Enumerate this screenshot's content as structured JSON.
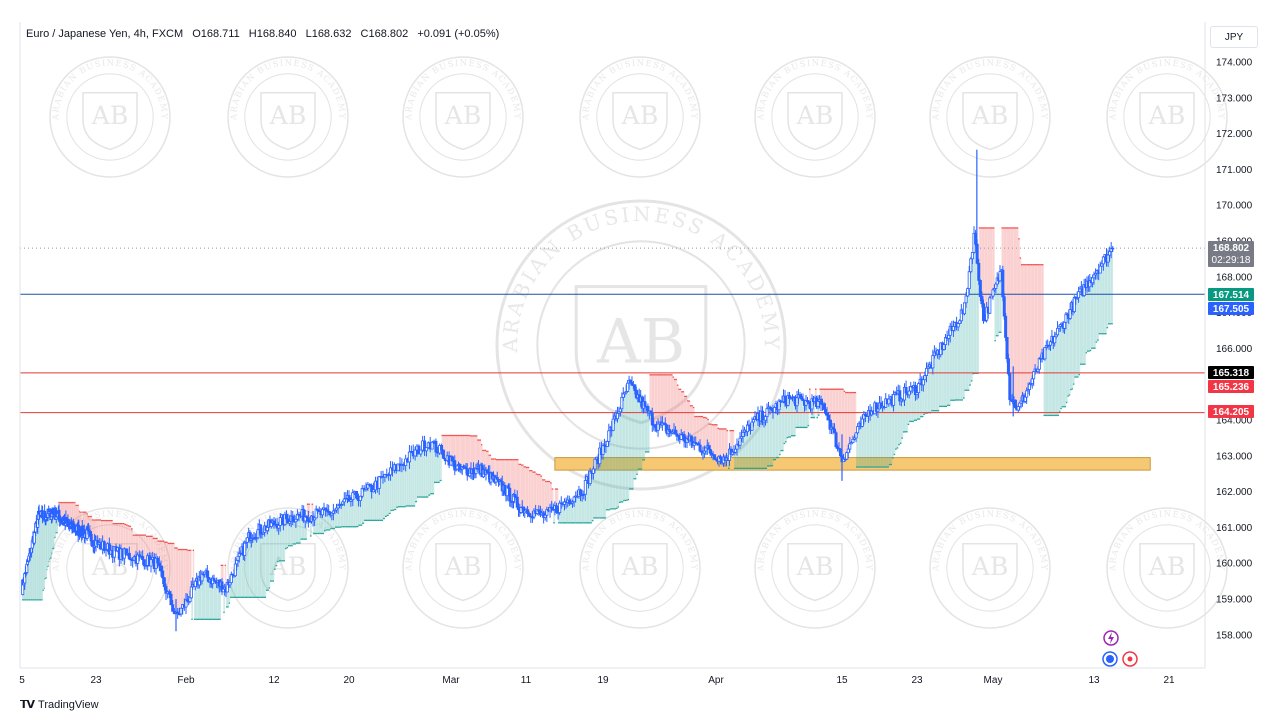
{
  "header": {
    "symbol": "Euro / Japanese Yen, 4h, FXCM",
    "open": "O168.711",
    "high": "H168.840",
    "low": "L168.632",
    "close": "C168.802",
    "change": "+0.091 (+0.05%)"
  },
  "currency": "JPY",
  "brand": "TradingView",
  "watermark": {
    "text": "ARABIAN BUSINESS ACADEMY",
    "initials": "AB"
  },
  "colors": {
    "candle": "#2962ff",
    "resistance_line": "#e53935",
    "support_line": "#1e4fa8",
    "zone_fill": "#f7c873",
    "cloud_up": "#26a69a",
    "cloud_down": "#ef5350"
  },
  "chart_data": {
    "type": "candlestick",
    "symbol": "EUR/JPY",
    "timeframe": "4h",
    "y_ticks": [
      "174.000",
      "173.000",
      "172.000",
      "171.000",
      "170.000",
      "169.000",
      "168.000",
      "167.000",
      "166.000",
      "165.000",
      "164.000",
      "163.000",
      "162.000",
      "161.000",
      "160.000",
      "159.000",
      "158.000"
    ],
    "ylim": [
      157.6,
      174.5
    ],
    "x_ticks": [
      "5",
      "23",
      "Feb",
      "12",
      "20",
      "Mar",
      "11",
      "19",
      "Apr",
      "15",
      "23",
      "May",
      "13",
      "21"
    ],
    "close_path": [
      {
        "x": "Jan 5",
        "y": 159.3
      },
      {
        "x": "Jan 9",
        "y": 161.3
      },
      {
        "x": "Jan 13",
        "y": 161.4
      },
      {
        "x": "Jan 17",
        "y": 161.0
      },
      {
        "x": "Jan 21",
        "y": 160.8
      },
      {
        "x": "Jan 25",
        "y": 160.3
      },
      {
        "x": "Jan 29",
        "y": 160.0
      },
      {
        "x": "Jan 31",
        "y": 158.5
      },
      {
        "x": "Feb 3",
        "y": 159.7
      },
      {
        "x": "Feb 6",
        "y": 159.3
      },
      {
        "x": "Feb 9",
        "y": 160.8
      },
      {
        "x": "Feb 14",
        "y": 161.3
      },
      {
        "x": "Feb 18",
        "y": 161.4
      },
      {
        "x": "Feb 22",
        "y": 162.1
      },
      {
        "x": "Feb 27",
        "y": 163.4
      },
      {
        "x": "Mar 1",
        "y": 162.6
      },
      {
        "x": "Mar 4",
        "y": 162.6
      },
      {
        "x": "Mar 7",
        "y": 162.1
      },
      {
        "x": "Mar 9",
        "y": 161.6
      },
      {
        "x": "Mar 12",
        "y": 161.3
      },
      {
        "x": "Mar 16",
        "y": 162.1
      },
      {
        "x": "Mar 19",
        "y": 163.8
      },
      {
        "x": "Mar 21",
        "y": 165.0
      },
      {
        "x": "Mar 24",
        "y": 163.9
      },
      {
        "x": "Mar 28",
        "y": 163.4
      },
      {
        "x": "Apr 1",
        "y": 162.9
      },
      {
        "x": "Apr 4",
        "y": 163.9
      },
      {
        "x": "Apr 8",
        "y": 164.6
      },
      {
        "x": "Apr 12",
        "y": 164.4
      },
      {
        "x": "Apr 14",
        "y": 162.9
      },
      {
        "x": "Apr 17",
        "y": 164.3
      },
      {
        "x": "Apr 22",
        "y": 164.9
      },
      {
        "x": "Apr 24",
        "y": 165.8
      },
      {
        "x": "Apr 27",
        "y": 167.1
      },
      {
        "x": "Apr 28",
        "y": 169.2
      },
      {
        "x": "Apr 29",
        "y": 166.8
      },
      {
        "x": "May 1",
        "y": 168.2
      },
      {
        "x": "May 2",
        "y": 164.7
      },
      {
        "x": "May 3",
        "y": 164.3
      },
      {
        "x": "May 6",
        "y": 165.8
      },
      {
        "x": "May 10",
        "y": 167.4
      },
      {
        "x": "May 14",
        "y": 168.8
      }
    ],
    "wick_extremes": {
      "high": 171.55,
      "low": 158.1
    },
    "levels": [
      {
        "label": "165.318",
        "value": 165.318,
        "color": "#e53935"
      },
      {
        "label": "164.205",
        "value": 164.205,
        "color": "#e53935"
      },
      {
        "label": "167.514",
        "value": 167.514,
        "color": "#1e4fa8"
      }
    ],
    "zone": {
      "from": 162.6,
      "to": 162.95,
      "start": "Mar 13",
      "end": "May 18"
    },
    "price_labels": [
      {
        "text": "168.802",
        "sub": "02:29:18",
        "bg": "#787b86",
        "fg": "#ffffff",
        "value": 168.802
      },
      {
        "text": "167.514",
        "sub": "",
        "bg": "#089981",
        "fg": "#ffffff",
        "value": 167.514
      },
      {
        "text": "167.505",
        "sub": "",
        "bg": "#2962ff",
        "fg": "#ffffff",
        "value": 167.505
      },
      {
        "text": "165.318",
        "sub": "",
        "bg": "#000000",
        "fg": "#ffffff",
        "value": 165.318
      },
      {
        "text": "165.236",
        "sub": "",
        "bg": "#f23645",
        "fg": "#ffffff",
        "value": 165.236
      },
      {
        "text": "164.205",
        "sub": "",
        "bg": "#f23645",
        "fg": "#ffffff",
        "value": 164.205
      }
    ],
    "last_price": 168.802
  }
}
